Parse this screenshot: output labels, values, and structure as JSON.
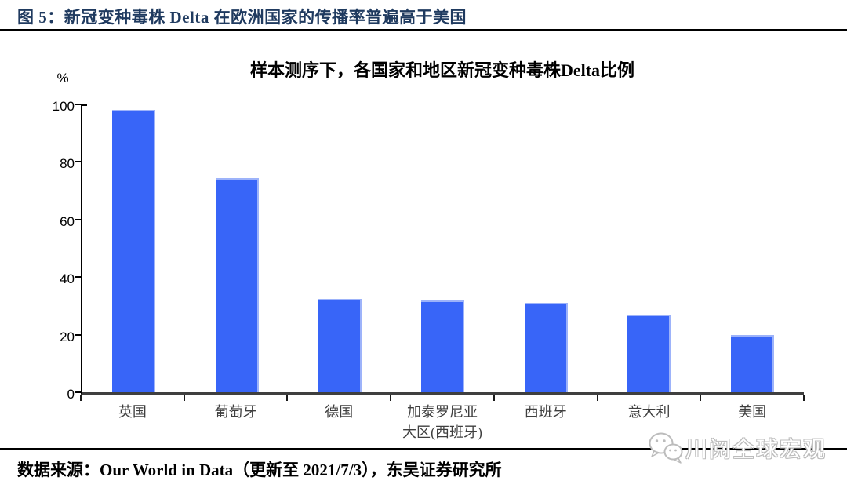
{
  "header": {
    "title": "图 5：新冠变种毒株 Delta 在欧洲国家的传播率普遍高于美国"
  },
  "chart_data": {
    "type": "bar",
    "title": "样本测序下，各国家和地区新冠变种毒株Delta比例",
    "categories": [
      "英国",
      "葡萄牙",
      "德国",
      "加泰罗尼亚大区(西班牙)",
      "西班牙",
      "意大利",
      "美国"
    ],
    "category_lines": [
      [
        "英国"
      ],
      [
        "葡萄牙"
      ],
      [
        "德国"
      ],
      [
        "加泰罗尼亚",
        "大区(西班牙)"
      ],
      [
        "西班牙"
      ],
      [
        "意大利"
      ],
      [
        "美国"
      ]
    ],
    "values": [
      98,
      74.5,
      32.5,
      32,
      31,
      27,
      20
    ],
    "xlabel": "",
    "ylabel": "%",
    "ylim": [
      0,
      100
    ],
    "yticks": [
      0,
      20,
      40,
      60,
      80,
      100
    ],
    "grid": false,
    "legend": false,
    "bar_color": "#3865f8",
    "bar_edge_color": "#9db3fa",
    "title_color": "#000000",
    "header_color": "#1f3a5f"
  },
  "footer": {
    "source": "数据来源：Our World in Data（更新至 2021/7/3），东吴证券研究所"
  },
  "watermark": {
    "text": "川阅全球宏观",
    "icon": "wechat-icon"
  }
}
